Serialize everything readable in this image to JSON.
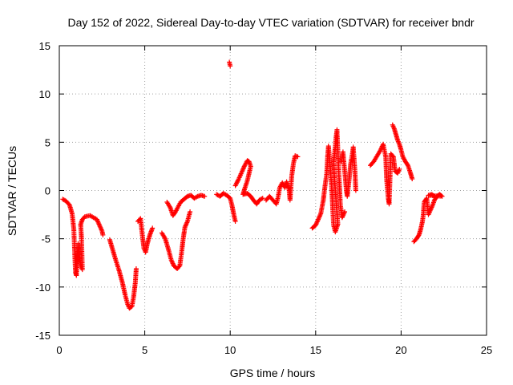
{
  "chart_data": {
    "type": "scatter",
    "title": "Day 152 of 2022, Sidereal Day-to-day VTEC variation (SDTVAR) for receiver bndr",
    "xlabel": "GPS time / hours",
    "ylabel": "SDTVAR / TECUs",
    "xlim": [
      0,
      25
    ],
    "ylim": [
      -15,
      15
    ],
    "xticks": [
      0,
      5,
      10,
      15,
      20,
      25
    ],
    "yticks": [
      -15,
      -10,
      -5,
      0,
      5,
      10,
      15
    ],
    "grid": true,
    "marker": "+",
    "color": "#ff0000",
    "series": [
      {
        "name": "SDTVAR",
        "segments": [
          [
            [
              0.2,
              -0.9
            ],
            [
              0.4,
              -1.1
            ],
            [
              0.6,
              -1.5
            ],
            [
              0.75,
              -2.4
            ],
            [
              0.85,
              -4.0
            ],
            [
              0.9,
              -6.5
            ],
            [
              0.95,
              -8.5
            ],
            [
              1.0,
              -8.8
            ],
            [
              1.05,
              -7.0
            ],
            [
              1.1,
              -5.5
            ],
            [
              1.15,
              -6.5
            ],
            [
              1.25,
              -7.8
            ],
            [
              1.35,
              -8.2
            ],
            [
              1.3,
              -5.0
            ],
            [
              1.25,
              -3.5
            ],
            [
              1.35,
              -3.0
            ],
            [
              1.5,
              -2.7
            ],
            [
              1.8,
              -2.6
            ],
            [
              2.0,
              -2.8
            ],
            [
              2.2,
              -3.0
            ],
            [
              2.35,
              -3.6
            ],
            [
              2.5,
              -4.2
            ],
            [
              2.55,
              -4.6
            ]
          ],
          [
            [
              2.95,
              -5.1
            ],
            [
              3.1,
              -6.0
            ],
            [
              3.3,
              -7.2
            ],
            [
              3.5,
              -8.3
            ],
            [
              3.7,
              -9.6
            ],
            [
              3.85,
              -10.8
            ],
            [
              4.0,
              -11.8
            ],
            [
              4.1,
              -12.2
            ],
            [
              4.25,
              -12.0
            ],
            [
              4.35,
              -11.0
            ],
            [
              4.45,
              -9.5
            ],
            [
              4.5,
              -8.1
            ]
          ],
          [
            [
              4.6,
              -3.2
            ],
            [
              4.75,
              -2.9
            ],
            [
              4.85,
              -4.5
            ],
            [
              4.95,
              -6.0
            ],
            [
              5.05,
              -6.4
            ],
            [
              5.15,
              -5.5
            ],
            [
              5.3,
              -4.6
            ],
            [
              5.45,
              -3.9
            ]
          ],
          [
            [
              6.0,
              -4.4
            ],
            [
              6.2,
              -5.0
            ],
            [
              6.4,
              -6.2
            ],
            [
              6.55,
              -7.2
            ],
            [
              6.7,
              -7.8
            ],
            [
              6.9,
              -8.1
            ],
            [
              7.05,
              -7.8
            ],
            [
              7.15,
              -6.5
            ],
            [
              7.25,
              -5.0
            ],
            [
              7.35,
              -3.8
            ],
            [
              7.5,
              -3.2
            ],
            [
              7.65,
              -2.2
            ]
          ],
          [
            [
              6.3,
              -1.2
            ],
            [
              6.5,
              -1.8
            ],
            [
              6.65,
              -2.6
            ],
            [
              6.8,
              -2.2
            ],
            [
              6.95,
              -1.7
            ],
            [
              7.1,
              -1.2
            ],
            [
              7.3,
              -0.9
            ],
            [
              7.5,
              -0.6
            ],
            [
              7.7,
              -0.5
            ],
            [
              7.9,
              -0.8
            ],
            [
              8.1,
              -0.6
            ],
            [
              8.3,
              -0.5
            ],
            [
              8.5,
              -0.6
            ]
          ],
          [
            [
              9.2,
              -0.4
            ],
            [
              9.4,
              -0.6
            ],
            [
              9.6,
              -0.3
            ],
            [
              9.8,
              -0.5
            ],
            [
              10.0,
              -0.8
            ],
            [
              10.1,
              -1.5
            ],
            [
              10.2,
              -2.4
            ],
            [
              10.3,
              -3.2
            ]
          ],
          [
            [
              9.95,
              13.3
            ],
            [
              10.0,
              12.9
            ]
          ],
          [
            [
              10.3,
              0.5
            ],
            [
              10.5,
              1.2
            ],
            [
              10.7,
              2.0
            ],
            [
              10.85,
              2.6
            ],
            [
              11.0,
              3.1
            ],
            [
              11.1,
              3.0
            ],
            [
              11.2,
              2.5
            ],
            [
              11.0,
              1.0
            ],
            [
              10.85,
              0.2
            ],
            [
              10.75,
              -0.4
            ],
            [
              11.0,
              -0.3
            ],
            [
              11.2,
              -0.6
            ],
            [
              11.4,
              -1.1
            ],
            [
              11.55,
              -1.4
            ],
            [
              11.7,
              -1.0
            ],
            [
              11.9,
              -0.8
            ]
          ],
          [
            [
              12.1,
              -1.0
            ],
            [
              12.3,
              -0.6
            ],
            [
              12.5,
              -1.0
            ],
            [
              12.7,
              -1.4
            ],
            [
              12.8,
              -0.7
            ],
            [
              12.9,
              0.3
            ],
            [
              13.05,
              0.8
            ],
            [
              13.2,
              0.3
            ],
            [
              13.3,
              0.9
            ],
            [
              13.45,
              0.0
            ],
            [
              13.5,
              -1.0
            ],
            [
              13.6,
              1.5
            ],
            [
              13.7,
              2.8
            ],
            [
              13.8,
              3.6
            ],
            [
              13.95,
              3.5
            ]
          ],
          [
            [
              14.8,
              -3.9
            ],
            [
              15.0,
              -3.6
            ],
            [
              15.15,
              -3.0
            ],
            [
              15.3,
              -2.4
            ],
            [
              15.45,
              -1.0
            ],
            [
              15.55,
              0.5
            ],
            [
              15.65,
              1.8
            ],
            [
              15.7,
              3.5
            ],
            [
              15.75,
              4.6
            ],
            [
              15.85,
              2.5
            ],
            [
              15.95,
              0.0
            ],
            [
              16.0,
              -2.0
            ],
            [
              16.05,
              -3.6
            ],
            [
              16.15,
              -4.3
            ],
            [
              16.3,
              -3.5
            ],
            [
              16.1,
              1.2
            ],
            [
              16.05,
              3.0
            ],
            [
              16.15,
              4.5
            ],
            [
              16.2,
              5.6
            ],
            [
              16.25,
              6.3
            ],
            [
              16.35,
              2.0
            ],
            [
              16.45,
              -1.5
            ],
            [
              16.55,
              -2.8
            ],
            [
              16.7,
              -2.2
            ]
          ],
          [
            [
              16.5,
              3.0
            ],
            [
              16.6,
              4.0
            ],
            [
              16.7,
              2.0
            ],
            [
              16.8,
              0.0
            ],
            [
              16.85,
              -0.6
            ],
            [
              16.95,
              1.0
            ],
            [
              17.05,
              2.8
            ],
            [
              17.15,
              3.8
            ],
            [
              17.2,
              4.5
            ],
            [
              17.3,
              2.0
            ],
            [
              17.35,
              0.0
            ]
          ],
          [
            [
              18.2,
              2.6
            ],
            [
              18.4,
              3.0
            ],
            [
              18.6,
              3.6
            ],
            [
              18.8,
              4.2
            ],
            [
              18.95,
              4.8
            ],
            [
              19.1,
              3.5
            ],
            [
              19.15,
              1.2
            ],
            [
              19.25,
              -0.8
            ],
            [
              19.3,
              -1.4
            ],
            [
              19.4,
              3.8
            ],
            [
              19.55,
              3.5
            ],
            [
              19.65,
              2.0
            ],
            [
              19.8,
              1.8
            ],
            [
              19.9,
              2.2
            ]
          ],
          [
            [
              19.5,
              6.8
            ],
            [
              19.6,
              6.4
            ],
            [
              19.7,
              5.8
            ],
            [
              19.8,
              5.2
            ],
            [
              19.9,
              4.8
            ],
            [
              20.0,
              4.2
            ],
            [
              20.1,
              3.5
            ],
            [
              20.25,
              3.0
            ],
            [
              20.4,
              2.6
            ],
            [
              20.55,
              1.8
            ],
            [
              20.65,
              1.2
            ]
          ],
          [
            [
              20.75,
              -5.3
            ],
            [
              20.9,
              -5.0
            ],
            [
              21.05,
              -4.6
            ],
            [
              21.15,
              -4.0
            ],
            [
              21.25,
              -3.2
            ],
            [
              21.3,
              -2.5
            ],
            [
              21.35,
              -1.2
            ],
            [
              21.5,
              -0.8
            ],
            [
              21.6,
              -2.5
            ],
            [
              21.7,
              -2.1
            ],
            [
              21.85,
              -1.5
            ],
            [
              21.95,
              -1.0
            ],
            [
              22.1,
              -0.6
            ],
            [
              22.25,
              -0.4
            ],
            [
              22.4,
              -0.6
            ],
            [
              21.6,
              -0.5
            ],
            [
              21.8,
              -0.4
            ],
            [
              22.0,
              -0.7
            ]
          ]
        ]
      }
    ]
  }
}
